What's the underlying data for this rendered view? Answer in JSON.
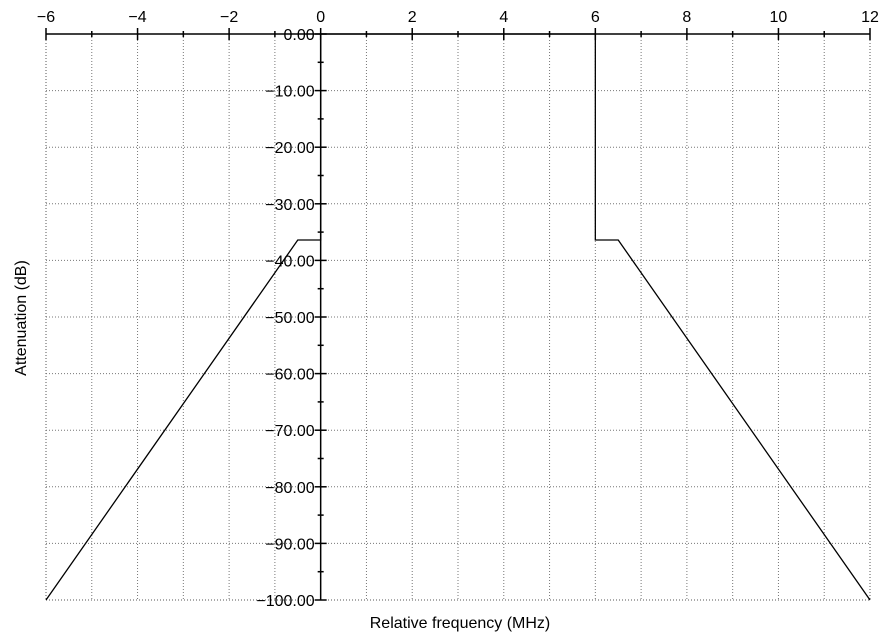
{
  "chart_data": {
    "type": "line",
    "title": "",
    "xlabel": "Relative frequency (MHz)",
    "ylabel": "Attenuation (dB)",
    "xlim": [
      -6,
      12
    ],
    "ylim": [
      -100,
      0
    ],
    "grid": true,
    "grid_style": "dotted",
    "x_ticks": [
      {
        "value": -6,
        "label": "−6"
      },
      {
        "value": -4,
        "label": "−4"
      },
      {
        "value": -2,
        "label": "−2"
      },
      {
        "value": 0,
        "label": "0"
      },
      {
        "value": 2,
        "label": "2"
      },
      {
        "value": 4,
        "label": "4"
      },
      {
        "value": 6,
        "label": "6"
      },
      {
        "value": 8,
        "label": "8"
      },
      {
        "value": 10,
        "label": "10"
      },
      {
        "value": 12,
        "label": "12"
      }
    ],
    "y_ticks": [
      {
        "value": 0,
        "label": "0.00"
      },
      {
        "value": -10,
        "label": "−10.00"
      },
      {
        "value": -20,
        "label": "−20.00"
      },
      {
        "value": -30,
        "label": "−30.00"
      },
      {
        "value": -40,
        "label": "−40.00"
      },
      {
        "value": -50,
        "label": "−50.00"
      },
      {
        "value": -60,
        "label": "−60.00"
      },
      {
        "value": -70,
        "label": "−70.00"
      },
      {
        "value": -80,
        "label": "−80.00"
      },
      {
        "value": -90,
        "label": "−90.00"
      },
      {
        "value": -100,
        "label": "−100.00"
      }
    ],
    "series": [
      {
        "color": "#000000",
        "points": [
          [
            -6,
            -100
          ],
          [
            -0.5,
            -36.4
          ],
          [
            0,
            -36.4
          ],
          [
            0,
            0
          ],
          [
            6,
            0
          ],
          [
            6,
            -36.4
          ],
          [
            6.5,
            -36.4
          ],
          [
            12,
            -100
          ]
        ]
      }
    ]
  }
}
